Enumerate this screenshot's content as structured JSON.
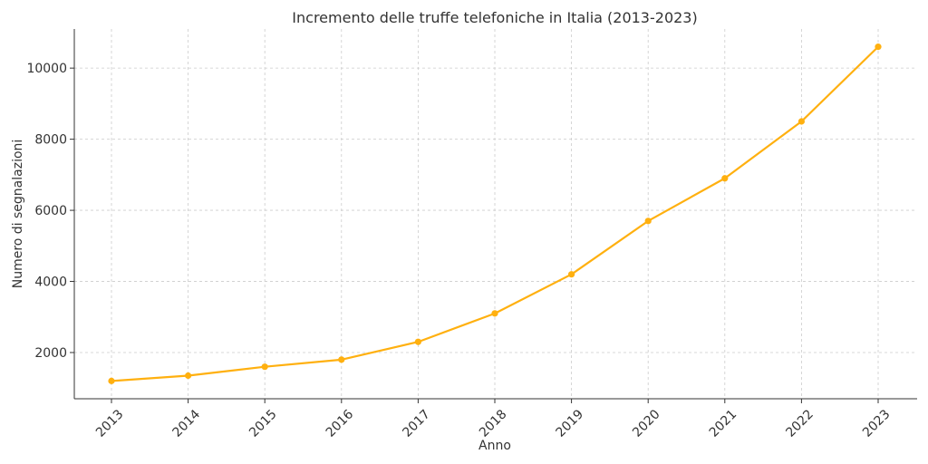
{
  "chart_data": {
    "type": "line",
    "title": "Incremento delle truffe telefoniche in Italia (2013-2023)",
    "xlabel": "Anno",
    "ylabel": "Numero di segnalazioni",
    "x": [
      "2013",
      "2014",
      "2015",
      "2016",
      "2017",
      "2018",
      "2019",
      "2020",
      "2021",
      "2022",
      "2023"
    ],
    "yticks": [
      2000,
      4000,
      6000,
      8000,
      10000
    ],
    "ylim": [
      700,
      11100
    ],
    "grid": true,
    "series": [
      {
        "values": [
          1200,
          1350,
          1600,
          1800,
          2300,
          3100,
          4200,
          5700,
          6900,
          8500,
          10600
        ],
        "color": "#FFB00F",
        "marker": "circle"
      }
    ]
  }
}
